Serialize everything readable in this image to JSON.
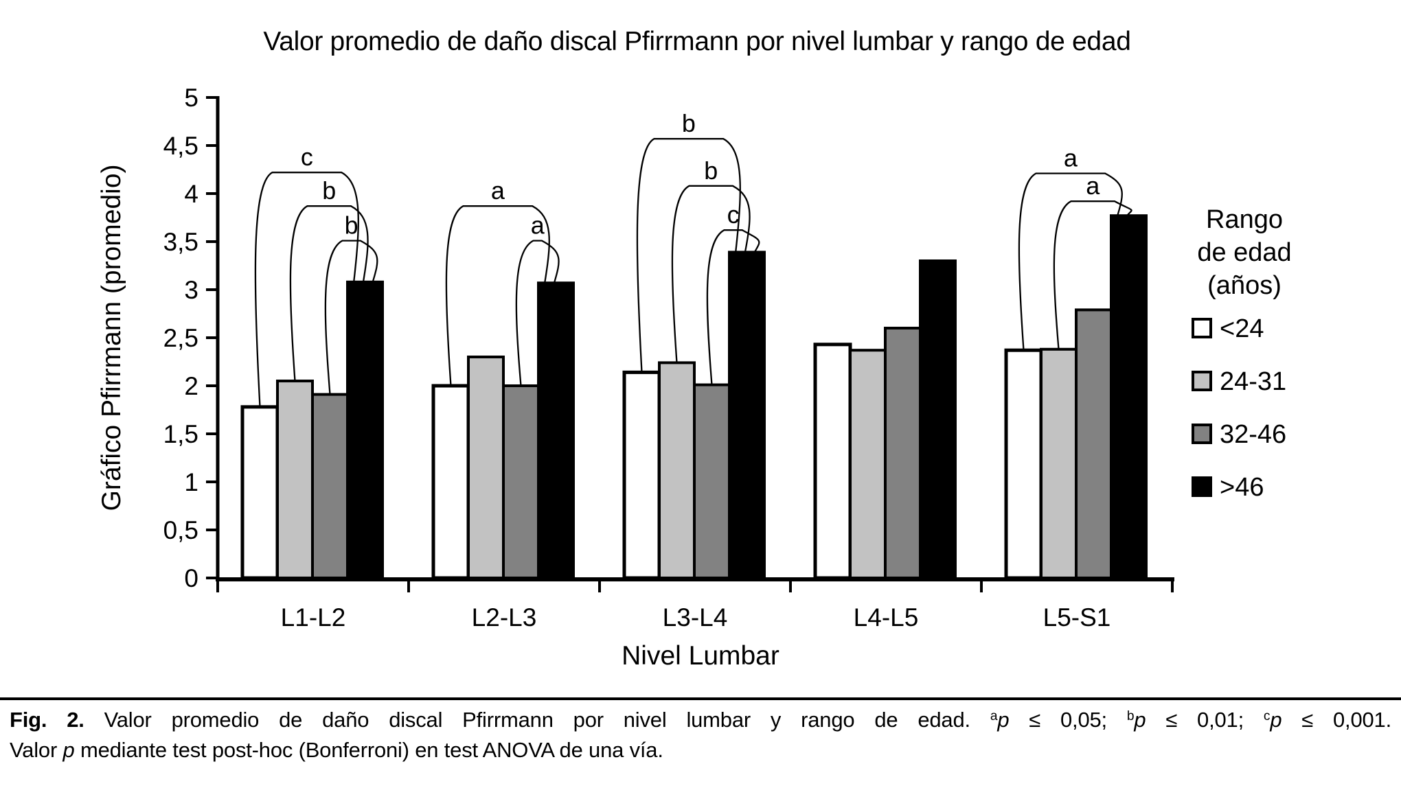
{
  "page": {
    "background": "#ffffff"
  },
  "chart_data": {
    "type": "bar",
    "title": "Valor promedio de daño discal Pfirrmann por nivel lumbar y rango de edad",
    "xlabel": "Nivel Lumbar",
    "ylabel": "Gráfico Pfirrmann (promedio)",
    "categories": [
      "L1-L2",
      "L2-L3",
      "L3-L4",
      "L4-L5",
      "L5-S1"
    ],
    "series": [
      {
        "name": "<24",
        "color": "#ffffff",
        "values": [
          1.78,
          2.0,
          2.14,
          2.43,
          2.37
        ]
      },
      {
        "name": "24-31",
        "color": "#c2c2c2",
        "values": [
          2.05,
          2.3,
          2.24,
          2.37,
          2.38
        ]
      },
      {
        "name": "32-46",
        "color": "#828282",
        "values": [
          1.91,
          2.0,
          2.01,
          2.6,
          2.79
        ]
      },
      {
        "name": ">46",
        "color": "#000000",
        "values": [
          3.08,
          3.07,
          3.39,
          3.3,
          3.77
        ]
      }
    ],
    "ylim": [
      0,
      5
    ],
    "ytick_labels": [
      "0",
      "0,5",
      "1",
      "1,5",
      "2",
      "2,5",
      "3",
      "3,5",
      "4",
      "4,5",
      "5"
    ],
    "grid": false,
    "legend": {
      "position": "right",
      "title_lines": [
        "Rango",
        "de edad",
        "(años)"
      ]
    },
    "significance_brackets": [
      {
        "category": "L1-L2",
        "category_index": 0,
        "from_series": 0,
        "to_series": 3,
        "height": 4.22,
        "label": "c"
      },
      {
        "category": "L1-L2",
        "category_index": 0,
        "from_series": 1,
        "to_series": 3,
        "height": 3.87,
        "label": "b"
      },
      {
        "category": "L1-L2",
        "category_index": 0,
        "from_series": 2,
        "to_series": 3,
        "height": 3.51,
        "label": "b"
      },
      {
        "category": "L2-L3",
        "category_index": 1,
        "from_series": 0,
        "to_series": 3,
        "height": 3.87,
        "label": "a"
      },
      {
        "category": "L2-L3",
        "category_index": 1,
        "from_series": 2,
        "to_series": 3,
        "height": 3.51,
        "label": "a"
      },
      {
        "category": "L3-L4",
        "category_index": 2,
        "from_series": 0,
        "to_series": 3,
        "height": 4.57,
        "label": "b"
      },
      {
        "category": "L3-L4",
        "category_index": 2,
        "from_series": 1,
        "to_series": 3,
        "height": 4.08,
        "label": "b"
      },
      {
        "category": "L3-L4",
        "category_index": 2,
        "from_series": 2,
        "to_series": 3,
        "height": 3.62,
        "label": "c"
      },
      {
        "category": "L5-S1",
        "category_index": 4,
        "from_series": 0,
        "to_series": 3,
        "height": 4.21,
        "label": "a"
      },
      {
        "category": "L5-S1",
        "category_index": 4,
        "from_series": 1,
        "to_series": 3,
        "height": 3.92,
        "label": "a"
      }
    ]
  },
  "caption": {
    "lines": [
      [
        {
          "text": "Fig. 2.",
          "bold": true
        },
        {
          "text": " Valor promedio de daño discal Pfirrmann por nivel lumbar y rango de edad. "
        },
        {
          "text": "a",
          "sup": true
        },
        {
          "text": "p",
          "italic": true
        },
        {
          "text": " ≤ 0,05; "
        },
        {
          "text": "b",
          "sup": true
        },
        {
          "text": "p",
          "italic": true
        },
        {
          "text": " ≤ 0,01; "
        },
        {
          "text": "c",
          "sup": true
        },
        {
          "text": "p",
          "italic": true
        },
        {
          "text": " ≤ 0,001."
        }
      ],
      [
        {
          "text": "Valor "
        },
        {
          "text": "p",
          "italic": true
        },
        {
          "text": " mediante test post-hoc (Bonferroni) en test ANOVA de una vía."
        }
      ]
    ]
  }
}
